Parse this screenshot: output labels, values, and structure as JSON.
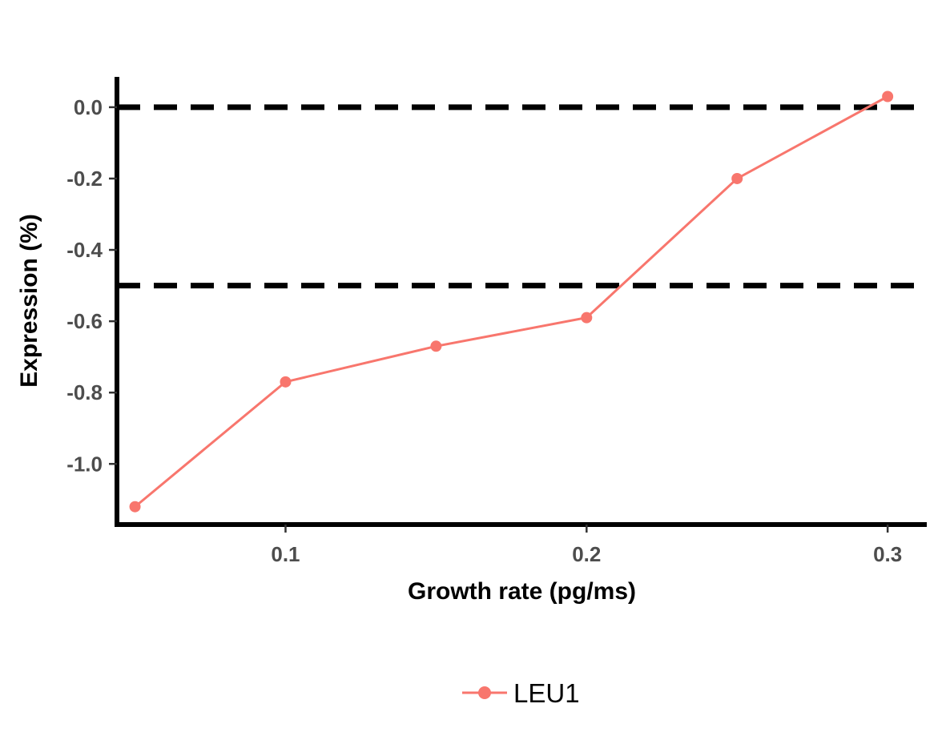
{
  "chart_data": {
    "type": "line",
    "title": "",
    "xlabel": "Growth rate (pg/ms)",
    "ylabel": "Expression (%)",
    "xlim": [
      0.044,
      0.313
    ],
    "ylim": [
      -1.17,
      0.085
    ],
    "x_ticks": [
      0.1,
      0.2,
      0.3
    ],
    "x_tick_labels": [
      "0.1",
      "0.2",
      "0.3"
    ],
    "y_ticks": [
      0.0,
      -0.2,
      -0.4,
      -0.6,
      -0.8,
      -1.0
    ],
    "y_tick_labels": [
      "0.0",
      "-0.2",
      "-0.4",
      "-0.6",
      "-0.8",
      "-1.0"
    ],
    "grid": false,
    "legend_position": "bottom",
    "series": [
      {
        "name": "LEU1",
        "color": "#F8766D",
        "x": [
          0.05,
          0.1,
          0.15,
          0.2,
          0.25,
          0.3
        ],
        "y": [
          -1.12,
          -0.77,
          -0.67,
          -0.59,
          -0.2,
          0.03
        ]
      }
    ],
    "reference_lines": [
      {
        "axis": "y",
        "value": 0.0,
        "style": "dashed",
        "color": "#000000"
      },
      {
        "axis": "y",
        "value": -0.5,
        "style": "dashed",
        "color": "#000000"
      }
    ]
  }
}
